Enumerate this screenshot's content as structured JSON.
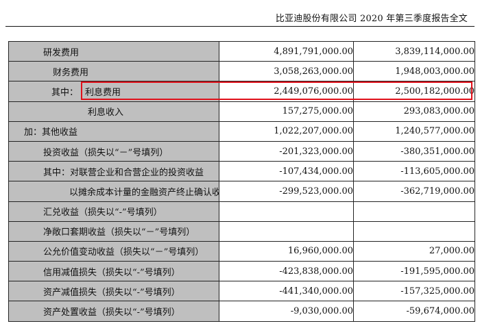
{
  "header": {
    "title": "比亚迪股份有限公司 2020 年第三季度报告全文"
  },
  "rows": [
    {
      "label": "研发费用",
      "v1": "4,891,791,000.00",
      "v2": "3,839,114,000.00"
    },
    {
      "label": "财务费用",
      "v1": "3,058,263,000.00",
      "v2": "1,948,003,000.00"
    },
    {
      "label_prefix": "其中：",
      "label": "利息费用",
      "v1": "2,449,076,000.00",
      "v2": "2,500,182,000.00"
    },
    {
      "label": "利息收入",
      "v1": "157,275,000.00",
      "v2": "293,083,000.00"
    },
    {
      "label": "加：其他收益",
      "v1": "1,022,207,000.00",
      "v2": "1,240,577,000.00"
    },
    {
      "label": "投资收益（损失以“－”号填列）",
      "v1": "-201,323,000.00",
      "v2": "-380,351,000.00"
    },
    {
      "label": "其中：对联营企业和合营企业的投资收益",
      "v1": "-107,434,000.00",
      "v2": "-113,605,000.00"
    },
    {
      "label": "以摊余成本计量的金融资产终止确认收益",
      "v1": "-299,523,000.00",
      "v2": "-362,719,000.00"
    },
    {
      "label": "汇兑收益（损失以“-”号填列）",
      "v1": "",
      "v2": ""
    },
    {
      "label": "净敞口套期收益（损失以“－”号填列）",
      "v1": "",
      "v2": ""
    },
    {
      "label": "公允价值变动收益（损失以“－”号填列）",
      "v1": "16,960,000.00",
      "v2": "27,000.00"
    },
    {
      "label": "信用减值损失（损失以“-”号填列）",
      "v1": "-423,838,000.00",
      "v2": "-191,595,000.00"
    },
    {
      "label": "资产减值损失（损失以“-”号填列）",
      "v1": "-441,340,000.00",
      "v2": "-157,325,000.00"
    },
    {
      "label": "资产处置收益（损失以“-”号填列）",
      "v1": "-9,030,000.00",
      "v2": "-59,674,000.00"
    }
  ]
}
